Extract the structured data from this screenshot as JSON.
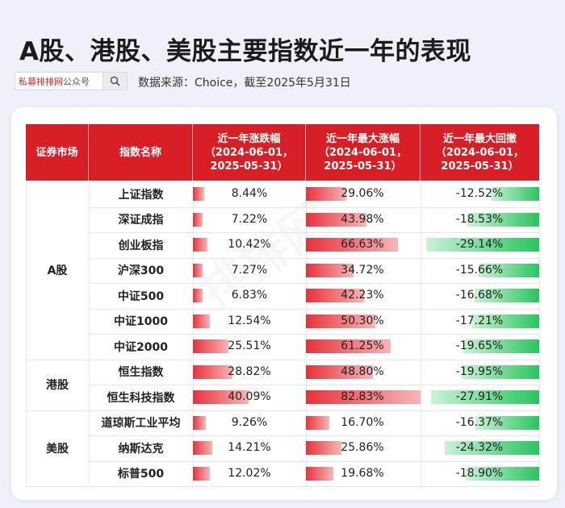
{
  "title": "A股、港股、美股主要指数近一年的表现",
  "search": {
    "brand": "私募排排网",
    "suffix": "公众号"
  },
  "source": "数据来源：Choice，截至2025年5月31日",
  "columns": [
    "证券市场",
    "指数名称",
    "近一年涨跌幅\n（2024-06-01，\n2025-05-31）",
    "近一年最大涨幅\n（2024-06-01，\n2025-05-31）",
    "近一年最大回撤\n（2024-06-01，\n2025-05-31）"
  ],
  "markets": [
    {
      "name": "A股",
      "count": 7
    },
    {
      "name": "港股",
      "count": 2
    },
    {
      "name": "美股",
      "count": 3
    }
  ],
  "rows": [
    {
      "name": "上证指数",
      "change": 8.44,
      "change_label": "8.44%",
      "max_gain": 29.06,
      "max_gain_label": "29.06%",
      "max_dd": -12.52,
      "max_dd_label": "-12.52%"
    },
    {
      "name": "深证成指",
      "change": 7.22,
      "change_label": "7.22%",
      "max_gain": 43.98,
      "max_gain_label": "43.98%",
      "max_dd": -18.53,
      "max_dd_label": "-18.53%"
    },
    {
      "name": "创业板指",
      "change": 10.42,
      "change_label": "10.42%",
      "max_gain": 66.63,
      "max_gain_label": "66.63%",
      "max_dd": -29.14,
      "max_dd_label": "-29.14%"
    },
    {
      "name": "沪深300",
      "change": 7.27,
      "change_label": "7.27%",
      "max_gain": 34.72,
      "max_gain_label": "34.72%",
      "max_dd": -15.66,
      "max_dd_label": "-15.66%"
    },
    {
      "name": "中证500",
      "change": 6.83,
      "change_label": "6.83%",
      "max_gain": 42.23,
      "max_gain_label": "42.23%",
      "max_dd": -16.68,
      "max_dd_label": "-16.68%"
    },
    {
      "name": "中证1000",
      "change": 12.54,
      "change_label": "12.54%",
      "max_gain": 50.3,
      "max_gain_label": "50.30%",
      "max_dd": -17.21,
      "max_dd_label": "-17.21%"
    },
    {
      "name": "中证2000",
      "change": 25.51,
      "change_label": "25.51%",
      "max_gain": 61.25,
      "max_gain_label": "61.25%",
      "max_dd": -19.65,
      "max_dd_label": "-19.65%"
    },
    {
      "name": "恒生指数",
      "change": 28.82,
      "change_label": "28.82%",
      "max_gain": 48.8,
      "max_gain_label": "48.80%",
      "max_dd": -19.95,
      "max_dd_label": "-19.95%"
    },
    {
      "name": "恒生科技指数",
      "change": 40.09,
      "change_label": "40.09%",
      "max_gain": 82.83,
      "max_gain_label": "82.83%",
      "max_dd": -27.91,
      "max_dd_label": "-27.91%"
    },
    {
      "name": "道琼斯工业平均",
      "change": 9.26,
      "change_label": "9.26%",
      "max_gain": 16.7,
      "max_gain_label": "16.70%",
      "max_dd": -16.37,
      "max_dd_label": "-16.37%"
    },
    {
      "name": "纳斯达克",
      "change": 14.21,
      "change_label": "14.21%",
      "max_gain": 25.86,
      "max_gain_label": "25.86%",
      "max_dd": -24.32,
      "max_dd_label": "-24.32%"
    },
    {
      "name": "标普500",
      "change": 12.02,
      "change_label": "12.02%",
      "max_gain": 19.68,
      "max_gain_label": "19.68%",
      "max_dd": -18.9,
      "max_dd_label": "-18.90%"
    }
  ],
  "colors": {
    "header": "#d91f26",
    "positive": "#e8323a",
    "negative": "#29c55e"
  }
}
